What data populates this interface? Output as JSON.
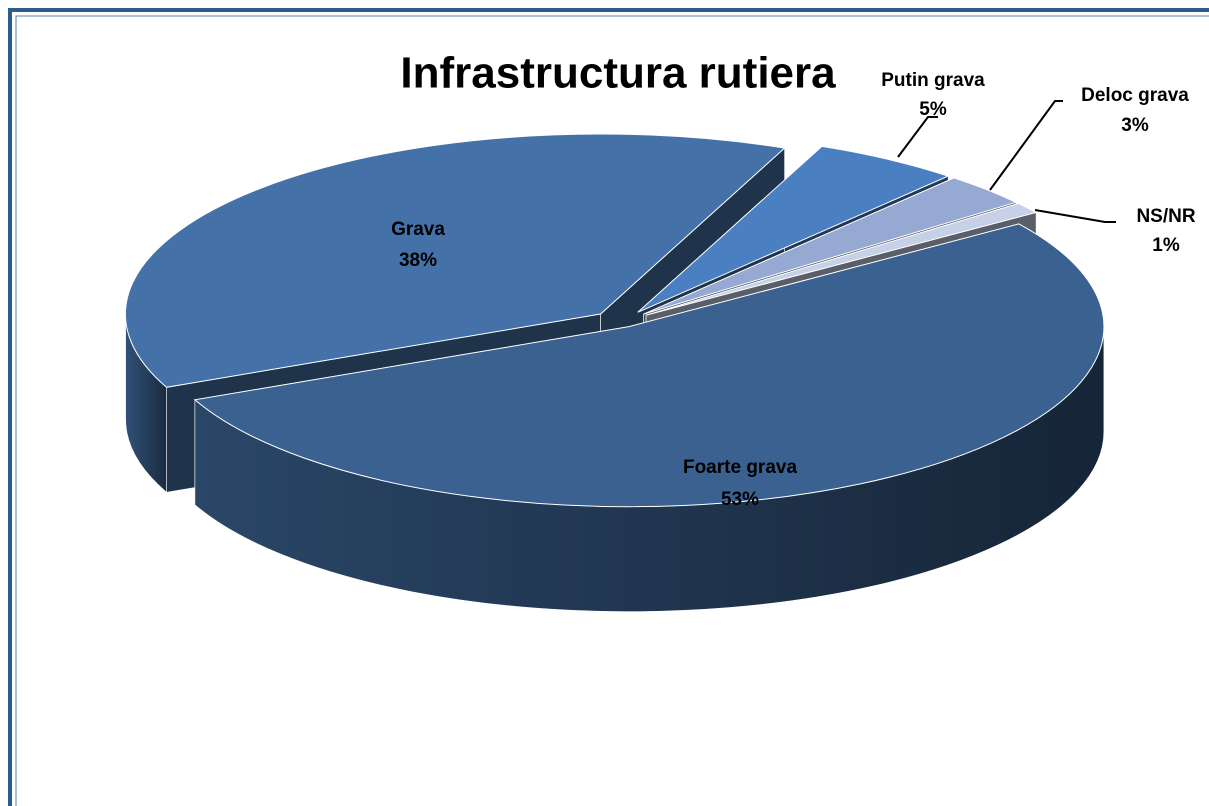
{
  "chart_data": {
    "type": "pie",
    "title": "Infrastructura rutiera",
    "categories": [
      "Foarte grava",
      "Grava",
      "Putin grava",
      "Deloc grava",
      "NS/NR"
    ],
    "values": [
      53,
      38,
      5,
      3,
      1
    ],
    "value_labels": [
      "53%",
      "38%",
      "5%",
      "3%",
      "1%"
    ],
    "colors": [
      "#3b6190",
      "#4471a7",
      "#4a7fc2",
      "#95a9d2",
      "#c6d0e6"
    ]
  }
}
